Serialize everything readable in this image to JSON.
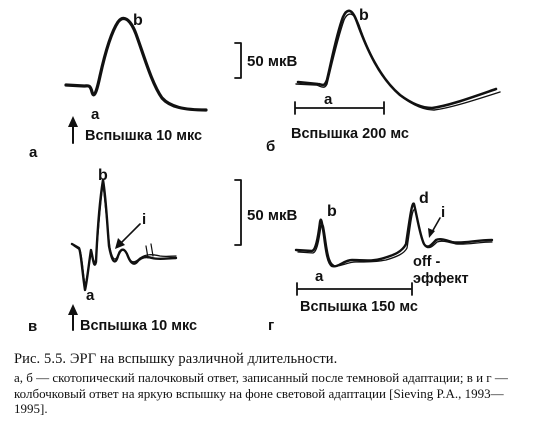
{
  "figure": {
    "panel_a": {
      "letter": "а",
      "peak_label": "b",
      "trough_label": "a",
      "stimulus_label": "Вспышка 10 мкс"
    },
    "panel_b": {
      "letter": "б",
      "peak_label": "b",
      "trough_label": "a",
      "stimulus_label": "Вспышка 200 мс"
    },
    "panel_v": {
      "letter": "в",
      "peak_label": "b",
      "trough_label": "a",
      "wave_label": "i",
      "stimulus_label": "Вспышка 10 мкс"
    },
    "panel_g": {
      "letter": "г",
      "peak_label": "b",
      "trough_label": "a",
      "off_peak_label": "d",
      "wave_label": "i",
      "off_label_1": "off -",
      "off_label_2": "эффект",
      "stimulus_label": "Вспышка 150 мс"
    },
    "scale_top": "50 мкВ",
    "scale_bottom": "50 мкВ"
  },
  "caption": {
    "title": "Рис. 5.5. ЭРГ на вспышку различной длительности.",
    "body": "а, б — скотопический палочковый ответ, записанный после темновой адаптации; в и г — колбочковый ответ на яркую вспышку на фоне световой адаптации [Sieving P.A., 1993—1995]."
  }
}
